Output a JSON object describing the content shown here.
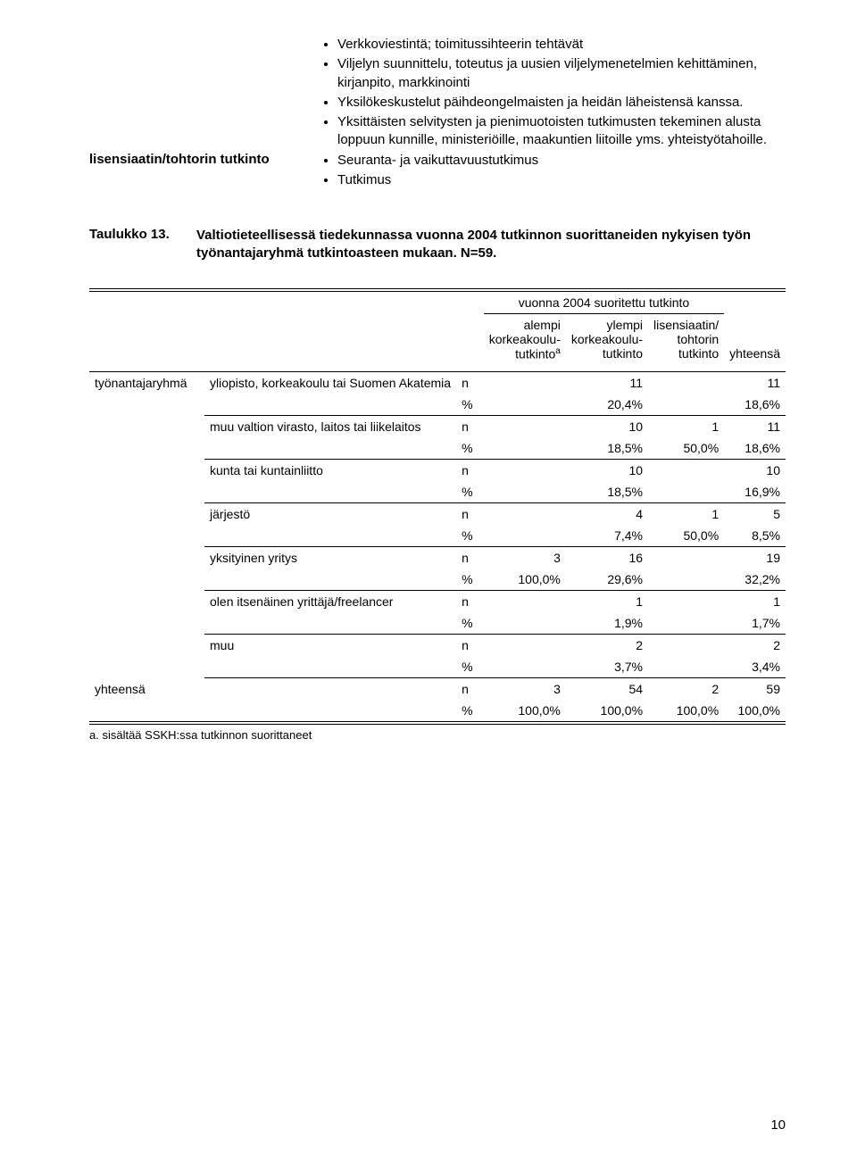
{
  "top": {
    "bullets_upper": [
      "Verkkoviestintä; toimitussihteerin tehtävät",
      "Viljelyn suunnittelu, toteutus ja uusien viljelymenetelmien kehittäminen, kirjanpito, markkinointi",
      "Yksilökeskustelut päihdeongelmaisten ja heidän läheistensä kanssa.",
      "Yksittäisten selvitysten ja pienimuotoisten tutkimusten tekeminen alusta loppuun kunnille, ministeriöille, maakuntien liitoille yms. yhteistyötahoille."
    ],
    "label": "lisensiaatin/tohtorin tutkinto",
    "bullets_lower": [
      "Seuranta- ja vaikuttavuustutkimus",
      "Tutkimus"
    ]
  },
  "caption": {
    "label": "Taulukko 13.",
    "text": "Valtiotieteellisessä tiedekunnassa vuonna 2004 tutkinnon suorittaneiden nykyisen työn työnantajaryhmä tutkintoasteen mukaan. N=59."
  },
  "table": {
    "superheader": "vuonna 2004 suoritettu tutkinto",
    "cols": {
      "c1_a": "alempi",
      "c1_b": "korkeakoulu-",
      "c1_c": "tutkinto",
      "c2_a": "ylempi",
      "c2_b": "korkeakoulu-",
      "c2_c": "tutkinto",
      "c3_a": "lisensiaatin/",
      "c3_b": "tohtorin",
      "c3_c": "tutkinto",
      "c4": "yhteensä"
    },
    "grouplabel": "työnantajaryhmä",
    "rows": [
      {
        "name": "yliopisto, korkeakoulu tai Suomen Akatemia",
        "n": [
          "",
          "11",
          "",
          "11"
        ],
        "p": [
          "",
          "20,4%",
          "",
          "18,6%"
        ]
      },
      {
        "name": "muu valtion virasto, laitos tai liikelaitos",
        "n": [
          "",
          "10",
          "1",
          "11"
        ],
        "p": [
          "",
          "18,5%",
          "50,0%",
          "18,6%"
        ]
      },
      {
        "name": "kunta tai kuntainliitto",
        "n": [
          "",
          "10",
          "",
          "10"
        ],
        "p": [
          "",
          "18,5%",
          "",
          "16,9%"
        ]
      },
      {
        "name": "järjestö",
        "n": [
          "",
          "4",
          "1",
          "5"
        ],
        "p": [
          "",
          "7,4%",
          "50,0%",
          "8,5%"
        ]
      },
      {
        "name": "yksityinen yritys",
        "n": [
          "3",
          "16",
          "",
          "19"
        ],
        "p": [
          "100,0%",
          "29,6%",
          "",
          "32,2%"
        ]
      },
      {
        "name": "olen itsenäinen yrittäjä/freelancer",
        "n": [
          "",
          "1",
          "",
          "1"
        ],
        "p": [
          "",
          "1,9%",
          "",
          "1,7%"
        ]
      },
      {
        "name": "muu",
        "n": [
          "",
          "2",
          "",
          "2"
        ],
        "p": [
          "",
          "3,7%",
          "",
          "3,4%"
        ]
      }
    ],
    "totalrow": "yhteensä",
    "total_n": [
      "3",
      "54",
      "2",
      "59"
    ],
    "total_p": [
      "100,0%",
      "100,0%",
      "100,0%",
      "100,0%"
    ],
    "footnote": "a. sisältää SSKH:ssa tutkinnon suorittaneet",
    "stat_n": "n",
    "stat_p": "%",
    "sup_a": "a"
  },
  "pagenum": "10"
}
